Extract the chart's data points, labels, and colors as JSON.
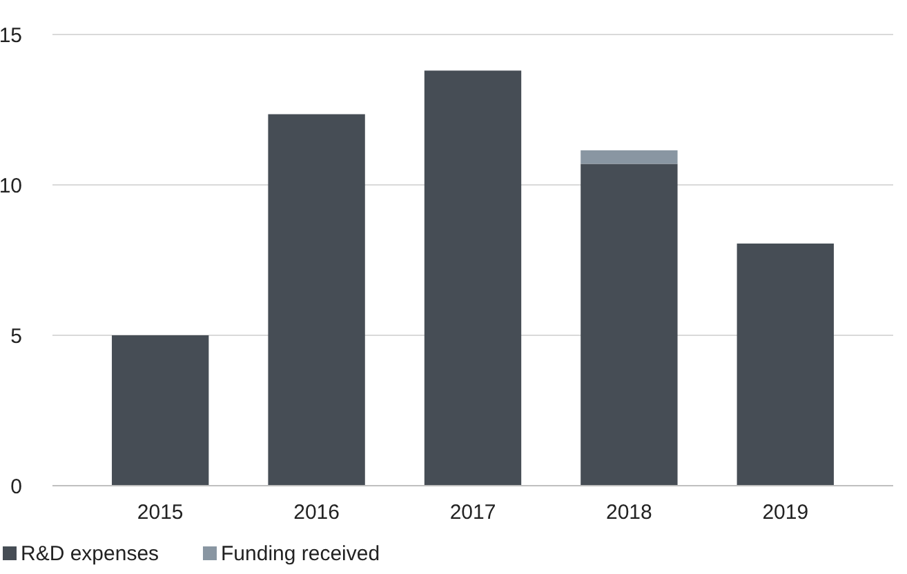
{
  "chart_data": {
    "type": "bar",
    "stacked": true,
    "categories": [
      "2015",
      "2016",
      "2017",
      "2018",
      "2019"
    ],
    "series": [
      {
        "name": "R&D expenses",
        "color": "#464d55",
        "values": [
          5.0,
          12.35,
          13.8,
          10.7,
          8.05
        ]
      },
      {
        "name": "Funding received",
        "color": "#8996a2",
        "values": [
          0,
          0,
          0,
          0.45,
          0
        ]
      }
    ],
    "ylim": [
      0,
      15
    ],
    "yticks": [
      0,
      5,
      10,
      15
    ],
    "grid": "y",
    "legend": "bottom left"
  }
}
